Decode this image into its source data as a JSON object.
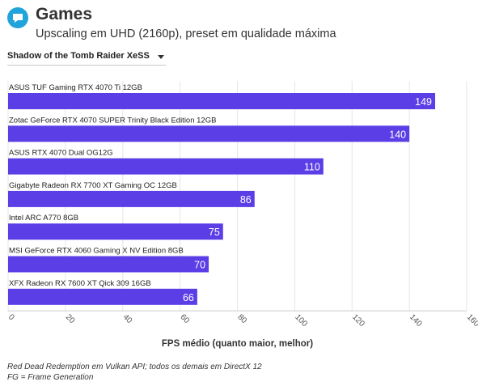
{
  "header": {
    "logo_icon": "chat-bubble-icon",
    "title": "Games",
    "subtitle": "Upscaling em UHD (2160p), preset em qualidade máxima"
  },
  "selector": {
    "selected": "Shadow of the Tomb Raider XeSS"
  },
  "chart_data": {
    "type": "bar",
    "orientation": "horizontal",
    "categories": [
      "ASUS TUF Gaming RTX 4070 Ti 12GB",
      "Zotac GeForce RTX 4070 SUPER Trinity Black Edition 12GB",
      "ASUS RTX 4070 Dual OG12G",
      "Gigabyte Radeon RX 7700 XT Gaming OC 12GB",
      "Intel ARC A770 8GB",
      "MSI GeForce RTX 4060 Gaming X NV Edition 8GB",
      "XFX Radeon RX 7600 XT Qick 309 16GB"
    ],
    "values": [
      149,
      140,
      110,
      86,
      75,
      70,
      66
    ],
    "xlabel": "FPS médio (quanto maior, melhor)",
    "xlim": [
      0,
      160
    ],
    "xticks": [
      0,
      20,
      40,
      60,
      80,
      100,
      120,
      140,
      160
    ],
    "bar_color": "#5c3ee6",
    "grid": true
  },
  "notes": [
    "Red Dead Redemption em Vulkan API; todos os demais em DirectX 12",
    "FG = Frame Generation"
  ]
}
